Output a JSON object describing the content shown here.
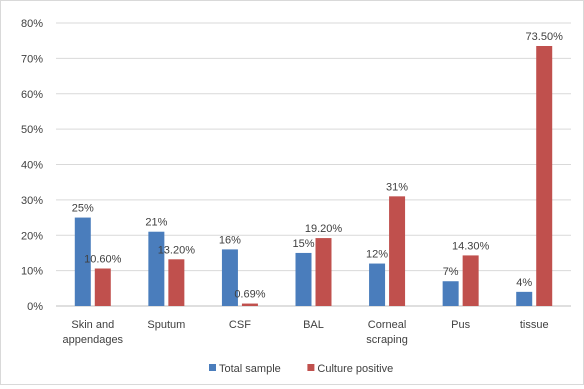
{
  "chart_data": {
    "type": "bar",
    "categories": [
      [
        "Skin and",
        "appendages"
      ],
      [
        "Sputum"
      ],
      [
        "CSF"
      ],
      [
        "BAL"
      ],
      [
        "Corneal",
        "scraping"
      ],
      [
        "Pus"
      ],
      [
        "tissue"
      ]
    ],
    "series": [
      {
        "name": "Total sample",
        "color": "#4a7dbc",
        "values": [
          25,
          21,
          16,
          15,
          12,
          7,
          4
        ],
        "labels": [
          "25%",
          "21%",
          "16%",
          "15%",
          "12%",
          "7%",
          "4%"
        ]
      },
      {
        "name": "Culture positive",
        "color": "#c0504d",
        "values": [
          10.6,
          13.2,
          0.69,
          19.2,
          31,
          14.3,
          73.5
        ],
        "labels": [
          "10.60%",
          "13.20%",
          "0.69%",
          "19.20%",
          "31%",
          "14.30%",
          "73.50%"
        ]
      }
    ],
    "ylim": [
      0,
      80
    ],
    "yticks": [
      0,
      10,
      20,
      30,
      40,
      50,
      60,
      70,
      80
    ],
    "ytick_labels": [
      "0%",
      "10%",
      "20%",
      "30%",
      "40%",
      "50%",
      "60%",
      "70%",
      "80%"
    ],
    "grid": true,
    "legend": "bottom",
    "title": "",
    "xlabel": "",
    "ylabel": ""
  }
}
